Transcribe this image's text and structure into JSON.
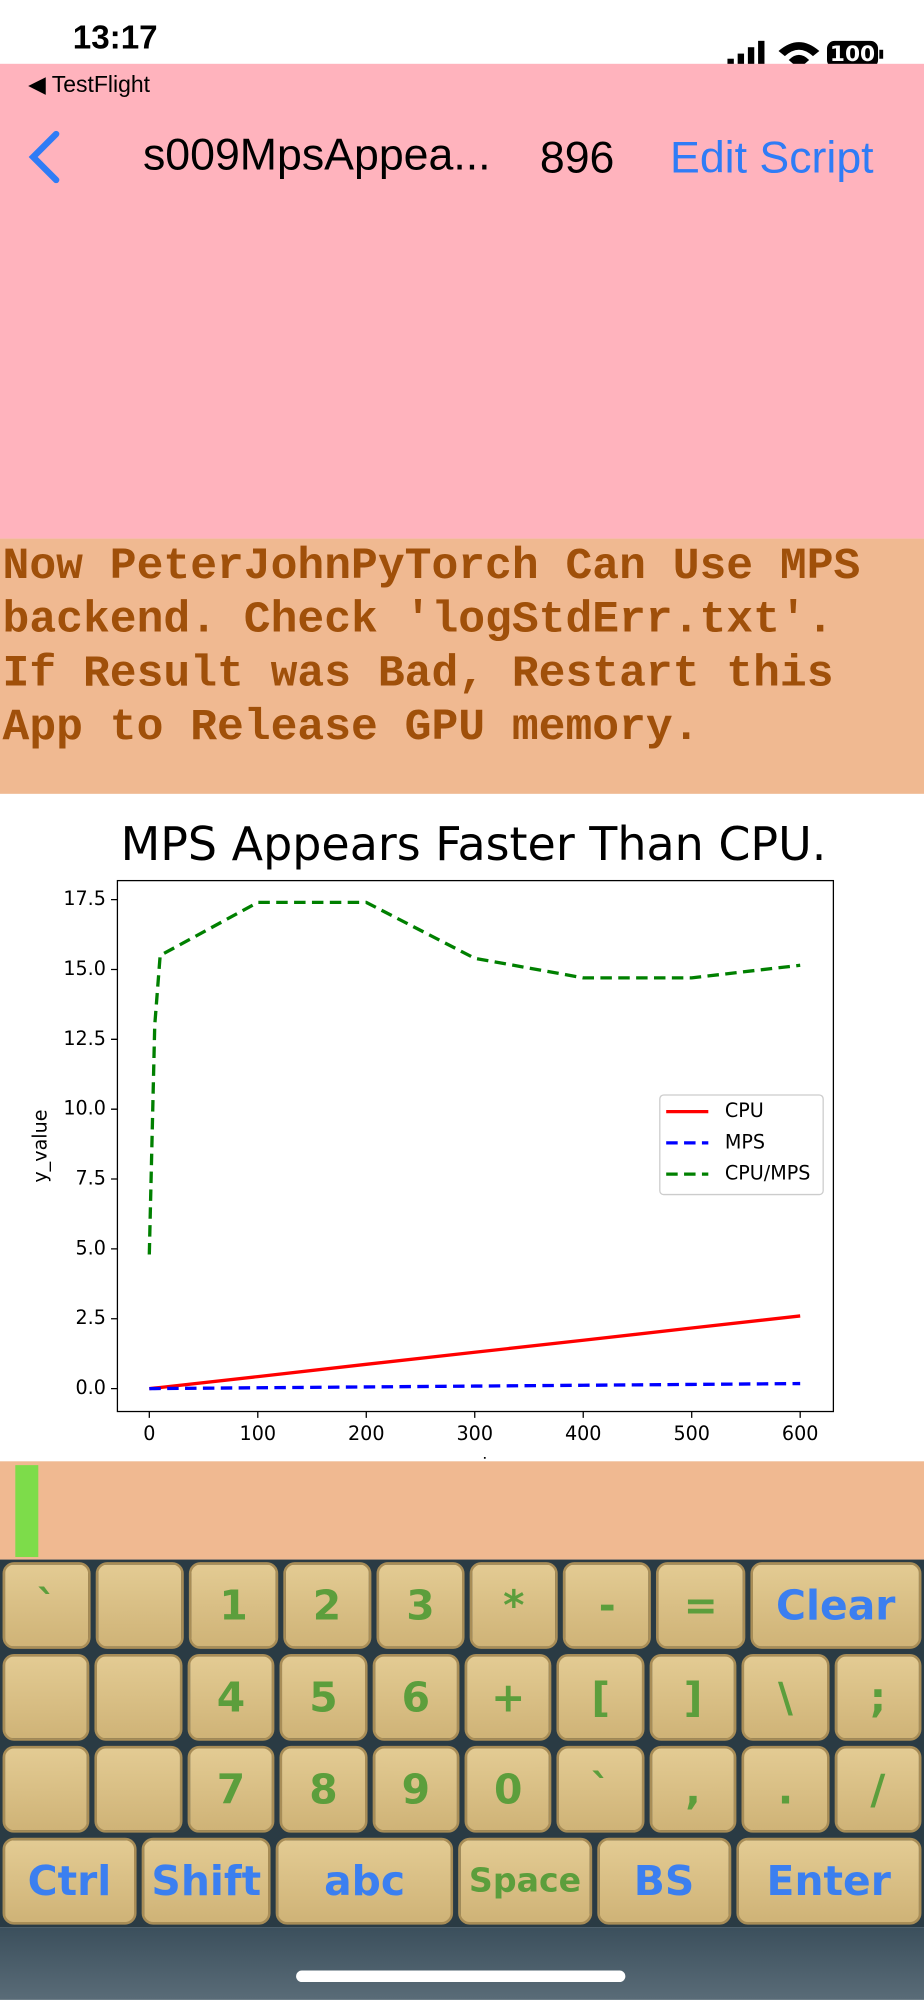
{
  "status": {
    "time": "13:17",
    "battery": "100",
    "back_app": "TestFlight"
  },
  "nav": {
    "title": "s009MpsAppea...",
    "count": "896",
    "action": "Edit Script"
  },
  "message": {
    "lines": [
      "Now PeterJohnPyTorch Can Use MPS",
      "backend. Check 'logStdErr.txt'.",
      "If Result was Bad, Restart this",
      "App to Release GPU memory."
    ]
  },
  "chart_data": {
    "type": "line",
    "title": "MPS Appears Faster Than CPU.",
    "x_label": "x_value",
    "y_label": "y_value",
    "x": [
      0,
      5,
      10,
      100,
      200,
      300,
      400,
      500,
      600
    ],
    "series": [
      {
        "name": "CPU",
        "color": "#ff0000",
        "dashed": false,
        "values": [
          0.0,
          0.02,
          0.04,
          0.43,
          0.87,
          1.3,
          1.73,
          2.17,
          2.6
        ]
      },
      {
        "name": "MPS",
        "color": "#0000ff",
        "dashed": true,
        "values": [
          0.0,
          0.002,
          0.003,
          0.03,
          0.06,
          0.09,
          0.12,
          0.15,
          0.18
        ]
      },
      {
        "name": "CPU/MPS",
        "color": "#008000",
        "dashed": true,
        "values": [
          4.8,
          13.0,
          15.5,
          17.4,
          17.4,
          15.4,
          14.7,
          14.7,
          15.15
        ]
      }
    ],
    "xlim": [
      -29.4,
      630.6
    ],
    "ylim": [
      -0.82,
      18.18
    ],
    "xticks": [
      0,
      100,
      200,
      300,
      400,
      500,
      600
    ],
    "yticks": [
      {
        "value": 0,
        "label": "0.0"
      },
      {
        "value": 2.5,
        "label": "2.5"
      },
      {
        "value": 5,
        "label": "5.0"
      },
      {
        "value": 7.5,
        "label": "7.5"
      },
      {
        "value": 10,
        "label": "10.0"
      },
      {
        "value": 12.5,
        "label": "12.5"
      },
      {
        "value": 15,
        "label": "15.0"
      },
      {
        "value": 17.5,
        "label": "17.5"
      }
    ],
    "grid": false,
    "legend": "right"
  },
  "keyboard": {
    "rows": [
      [
        "`",
        null,
        "1",
        "2",
        "3",
        "*",
        "-",
        "=",
        "Clear"
      ],
      [
        null,
        null,
        "4",
        "5",
        "6",
        "+",
        "[",
        "]",
        "\\",
        ";"
      ],
      [
        null,
        null,
        "7",
        "8",
        "9",
        "0",
        "`",
        ",",
        ".",
        "/"
      ],
      [
        "Ctrl",
        "Shift",
        "abc",
        "Space",
        "BS",
        "Enter"
      ]
    ]
  }
}
